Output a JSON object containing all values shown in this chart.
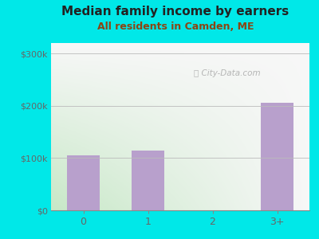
{
  "title": "Median family income by earners",
  "subtitle": "All residents in Camden, ME",
  "categories": [
    "0",
    "1",
    "2",
    "3+"
  ],
  "values": [
    105000,
    115000,
    0,
    205000
  ],
  "bar_color": "#b8a0cc",
  "background_outer": "#00e8e8",
  "grad_bottom_left": "#c8e8c8",
  "grad_top_right": "#f8f8f8",
  "title_color": "#222222",
  "subtitle_color": "#8b4513",
  "tick_color": "#666666",
  "yticks": [
    0,
    100000,
    200000,
    300000
  ],
  "ytick_labels": [
    "$0",
    "$100k",
    "$200k",
    "$300k"
  ],
  "ylim": [
    0,
    320000
  ],
  "xlim": [
    -0.5,
    3.5
  ],
  "watermark": "City-Data.com",
  "watermark_color": "#aaaaaa",
  "title_fontsize": 11,
  "subtitle_fontsize": 9,
  "tick_fontsize": 8
}
